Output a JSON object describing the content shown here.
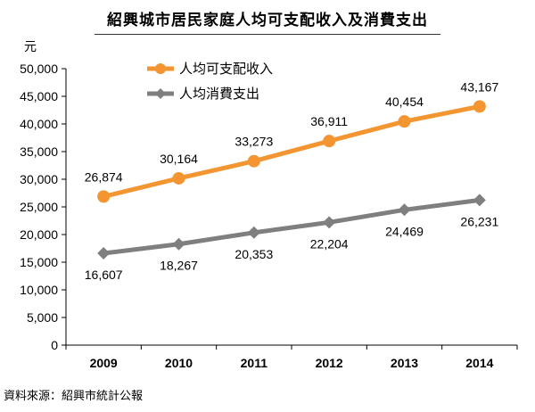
{
  "chart_data": {
    "type": "line",
    "title": "紹興城市居民家庭人均可支配收入及消費支出",
    "ylabel": "元",
    "xlabel": "",
    "categories": [
      "2009",
      "2010",
      "2011",
      "2012",
      "2013",
      "2014"
    ],
    "ylim": [
      0,
      50000
    ],
    "yticks": [
      0,
      5000,
      10000,
      15000,
      20000,
      25000,
      30000,
      35000,
      40000,
      45000,
      50000
    ],
    "ytick_labels": [
      "0",
      "5,000",
      "10,000",
      "15,000",
      "20,000",
      "25,000",
      "30,000",
      "35,000",
      "40,000",
      "45,000",
      "50,000"
    ],
    "grid": false,
    "legend_position": "top-left",
    "series": [
      {
        "name": "人均可支配收入",
        "color": "#F39530",
        "marker": "circle",
        "values": [
          26874,
          30164,
          33273,
          36911,
          40454,
          43167
        ],
        "labels": [
          "26,874",
          "30,164",
          "33,273",
          "36,911",
          "40,454",
          "43,167"
        ],
        "label_position": "above"
      },
      {
        "name": "人均消費支出",
        "color": "#7F7F7F",
        "marker": "diamond",
        "values": [
          16607,
          18267,
          20353,
          22204,
          24469,
          26231
        ],
        "labels": [
          "16,607",
          "18,267",
          "20,353",
          "22,204",
          "24,469",
          "26,231"
        ],
        "label_position": "below"
      }
    ]
  },
  "source": "資料來源：紹興市統計公報"
}
